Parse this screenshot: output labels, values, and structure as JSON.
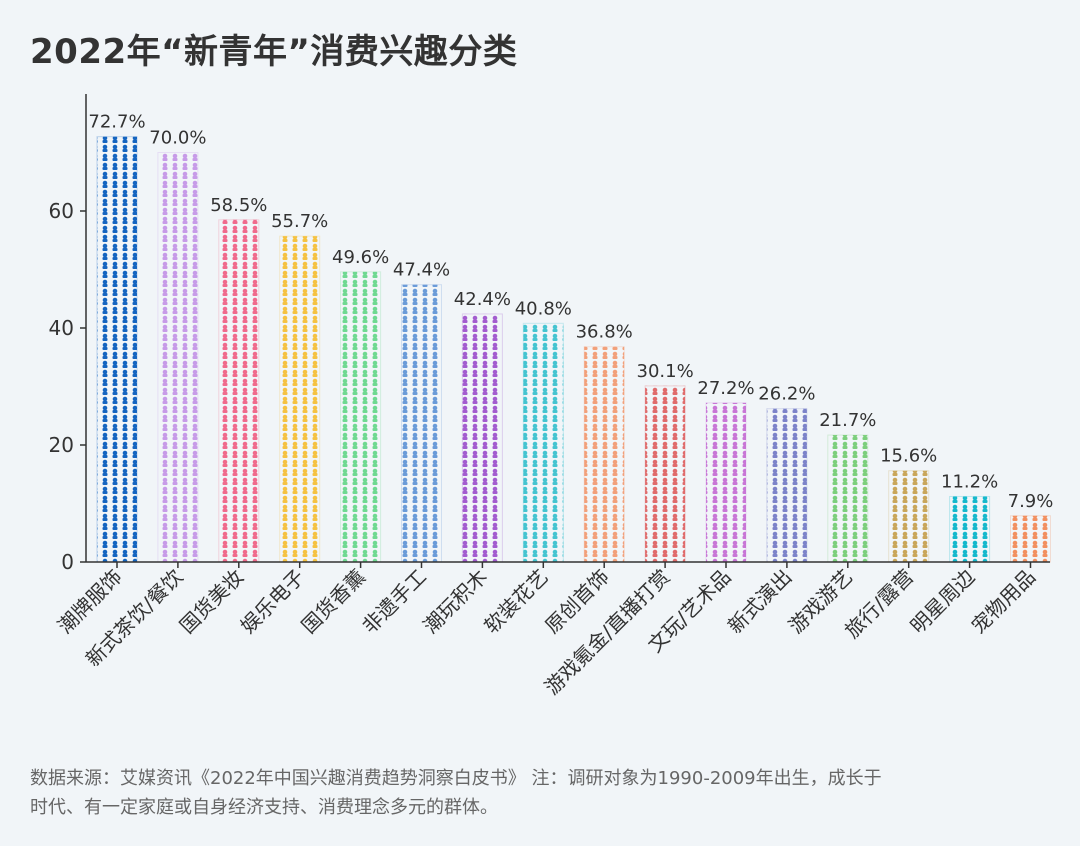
{
  "title": "2022年“新青年”消费兴趣分类",
  "footnote": {
    "line1": "数据来源：艾媒资讯《2022年中国兴趣消费趋势洞察白皮书》 注：调研对象为1990-2009年出生，成长于",
    "line2": "时代、有一定家庭或自身经济支持、消费理念多元的群体。"
  },
  "chart_data": {
    "type": "bar",
    "title": "2022年“新青年”消费兴趣分类",
    "xlabel": "",
    "ylabel": "",
    "ylim": [
      0,
      80
    ],
    "yticks": [
      0,
      20,
      40,
      60
    ],
    "grid": false,
    "legend": "none",
    "categories": [
      "潮牌服饰",
      "新式茶饮/餐饮",
      "国货美妆",
      "娱乐电子",
      "国货香薰",
      "非遗手工",
      "潮玩积木",
      "软装花艺",
      "原创首饰",
      "游戏氪金/直播打赏",
      "文玩/艺术品",
      "新式演出",
      "游戏游艺",
      "旅行/露营",
      "明星周边",
      "宠物用品"
    ],
    "values": [
      72.7,
      70.0,
      58.5,
      55.7,
      49.6,
      47.4,
      42.4,
      40.8,
      36.8,
      30.1,
      27.2,
      26.2,
      21.7,
      15.6,
      11.2,
      7.9
    ],
    "value_labels": [
      "72.7%",
      "70.0%",
      "58.5%",
      "55.7%",
      "49.6%",
      "47.4%",
      "42.4%",
      "40.8%",
      "36.8%",
      "30.1%",
      "27.2%",
      "26.2%",
      "21.7%",
      "15.6%",
      "11.2%",
      "7.9%"
    ],
    "colors": [
      "#1565c0",
      "#c79be8",
      "#f06a8c",
      "#f5c242",
      "#6fd991",
      "#6a9bd8",
      "#a35ccf",
      "#45c4d0",
      "#f2a07a",
      "#e06b6b",
      "#c876d6",
      "#7c83c9",
      "#7ccf7c",
      "#c9a65a",
      "#15b8cc",
      "#f29060"
    ]
  }
}
